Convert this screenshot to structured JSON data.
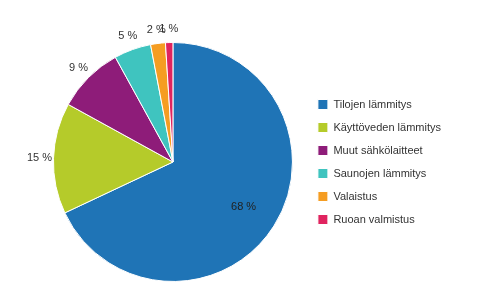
{
  "chart_data": {
    "type": "pie",
    "categories": [
      "Tilojen lämmitys",
      "Käyttöveden lämmitys",
      "Muut sähkölaitteet",
      "Saunojen lämmitys",
      "Valaistus",
      "Ruoan valmistus"
    ],
    "values": [
      68,
      15,
      9,
      5,
      2,
      1
    ],
    "value_labels": [
      "68 %",
      "15 %",
      "9 %",
      "5 %",
      "2 %",
      "1 %"
    ],
    "colors": [
      "#1f74b6",
      "#b5cb2a",
      "#8e1c79",
      "#3fc4bf",
      "#f59d22",
      "#e0245f"
    ],
    "legend": "right",
    "data_labels": true
  }
}
